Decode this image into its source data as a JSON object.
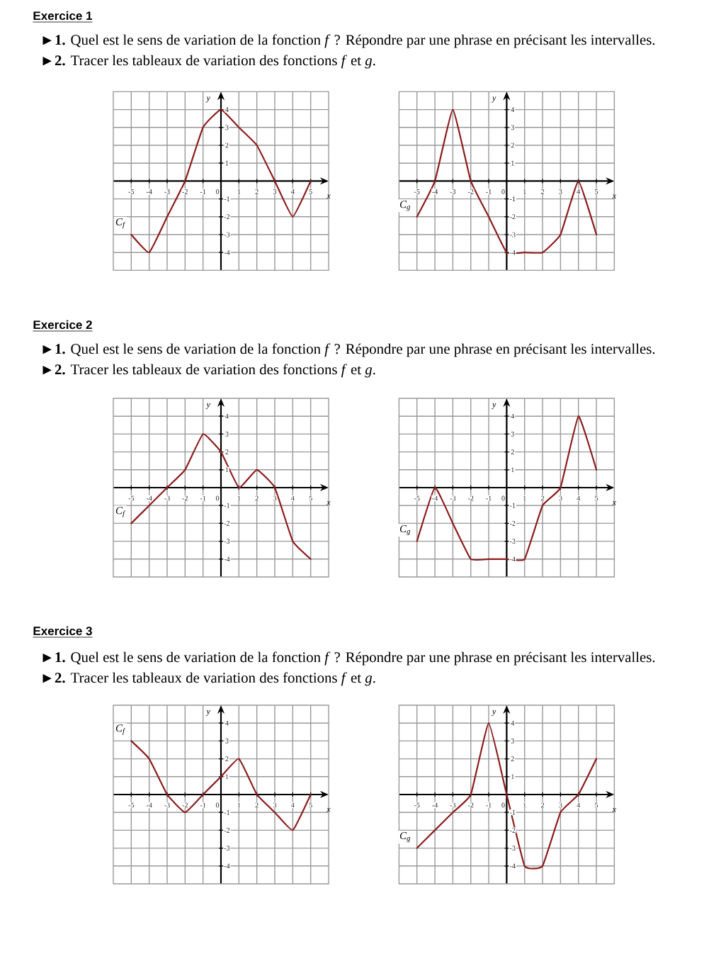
{
  "chart_data": [
    {
      "type": "line",
      "title": "Exercice 1",
      "annotations": [
        "**►1.** Quel est le sens de variation de la fonction *f* ? Répondre par une phrase en précisant les intervalles.",
        "**►2.** Tracer les tableaux de variation des fonctions *f* et *g*."
      ],
      "xlabel": "x",
      "ylabel": "y",
      "x": [
        -5,
        -4,
        -3,
        -2,
        -1,
        0,
        1,
        2,
        3,
        4,
        5
      ],
      "series": [
        {
          "name": "C$_{f}$",
          "color": "#8c1c1c",
          "values": [
            -3,
            -4,
            -2,
            0,
            3,
            4,
            3,
            2,
            0,
            -2,
            0
          ]
        }
      ],
      "xlim": [
        -6,
        6
      ],
      "ylim": [
        -5,
        5
      ],
      "xticks": [
        -5,
        -4,
        -3,
        -2,
        -1,
        0,
        1,
        2,
        3,
        4,
        5
      ],
      "yticks": [
        -4,
        -3,
        -2,
        -1,
        1,
        2,
        3,
        4
      ],
      "grid": true,
      "marker": "none"
    },
    {
      "type": "line",
      "xlabel": "x",
      "ylabel": "y",
      "x": [
        -5,
        -4,
        -3,
        -2,
        -1,
        0,
        1,
        2,
        3,
        4,
        5
      ],
      "series": [
        {
          "name": "C$_{g}$",
          "color": "#8c1c1c",
          "values": [
            -2,
            0,
            4,
            0,
            -2,
            -4,
            -4,
            -4,
            -3,
            0,
            -3
          ]
        }
      ],
      "xlim": [
        -6,
        6
      ],
      "ylim": [
        -5,
        5
      ],
      "xticks": [
        -5,
        -4,
        -3,
        -2,
        -1,
        0,
        1,
        2,
        3,
        4,
        5
      ],
      "yticks": [
        -4,
        -3,
        -2,
        -1,
        1,
        2,
        3,
        4
      ],
      "grid": true,
      "marker": "none"
    },
    {
      "type": "line",
      "title": "Exercice 2",
      "annotations": [
        "**►1.** Quel est le sens de variation de la fonction *f* ? Répondre par une phrase en précisant les intervalles.",
        "**►2.** Tracer les tableaux de variation des fonctions *f* et *g*."
      ],
      "xlabel": "x",
      "ylabel": "y",
      "x": [
        -5,
        -4,
        -3,
        -2,
        -1,
        0,
        1,
        2,
        3,
        4,
        5
      ],
      "series": [
        {
          "name": "C$_{f}$",
          "color": "#8c1c1c",
          "values": [
            -2,
            -1,
            0,
            1,
            3,
            2,
            0,
            1,
            0,
            -3,
            -4
          ]
        }
      ],
      "xlim": [
        -6,
        6
      ],
      "ylim": [
        -5,
        5
      ],
      "xticks": [
        -5,
        -4,
        -3,
        -2,
        -1,
        0,
        1,
        2,
        3,
        4,
        5
      ],
      "yticks": [
        -4,
        -3,
        -2,
        -1,
        1,
        2,
        3,
        4
      ],
      "grid": true,
      "marker": "none"
    },
    {
      "type": "line",
      "xlabel": "x",
      "ylabel": "y",
      "x": [
        -5,
        -4,
        -3,
        -2,
        -1,
        0,
        1,
        2,
        3,
        4,
        5
      ],
      "series": [
        {
          "name": "C$_{g}$",
          "color": "#8c1c1c",
          "values": [
            -3,
            0,
            -2,
            -4,
            -4,
            -4,
            -4,
            -1,
            0,
            4,
            1
          ]
        }
      ],
      "xlim": [
        -6,
        6
      ],
      "ylim": [
        -5,
        5
      ],
      "xticks": [
        -5,
        -4,
        -3,
        -2,
        -1,
        0,
        1,
        2,
        3,
        4,
        5
      ],
      "yticks": [
        -4,
        -3,
        -2,
        -1,
        1,
        2,
        3,
        4
      ],
      "grid": true,
      "marker": "none"
    },
    {
      "type": "line",
      "title": "Exercice 3",
      "annotations": [
        "**►1.** Quel est le sens de variation de la fonction *f* ? Répondre par une phrase en précisant les intervalles.",
        "**►2.** Tracer les tableaux de variation des fonctions *f* et *g*."
      ],
      "xlabel": "x",
      "ylabel": "y",
      "x": [
        -5,
        -4,
        -3,
        -2,
        -1,
        0,
        1,
        2,
        3,
        4,
        5
      ],
      "series": [
        {
          "name": "C$_{f}$",
          "color": "#8c1c1c",
          "values": [
            3,
            2,
            0,
            -1,
            0,
            1,
            2,
            0,
            -1,
            -2,
            0
          ]
        }
      ],
      "xlim": [
        -6,
        6
      ],
      "ylim": [
        -5,
        5
      ],
      "xticks": [
        -5,
        -4,
        -3,
        -2,
        -1,
        0,
        1,
        2,
        3,
        4,
        5
      ],
      "yticks": [
        -4,
        -3,
        -2,
        -1,
        1,
        2,
        3,
        4
      ],
      "grid": true,
      "marker": "none"
    },
    {
      "type": "line",
      "xlabel": "x",
      "ylabel": "y",
      "x": [
        -5,
        -4,
        -3,
        -2,
        -1,
        0,
        1,
        2,
        3,
        4,
        5
      ],
      "series": [
        {
          "name": "C$_{g}$",
          "color": "#8c1c1c",
          "values": [
            -3,
            -2,
            -1,
            0,
            4,
            0,
            -4,
            -4,
            -1,
            0,
            2
          ]
        }
      ],
      "xlim": [
        -6,
        6
      ],
      "ylim": [
        -5,
        5
      ],
      "xticks": [
        -5,
        -4,
        -3,
        -2,
        -1,
        0,
        1,
        2,
        3,
        4,
        5
      ],
      "yticks": [
        -4,
        -3,
        -2,
        -1,
        1,
        2,
        3,
        4
      ],
      "grid": true,
      "marker": "none"
    }
  ]
}
